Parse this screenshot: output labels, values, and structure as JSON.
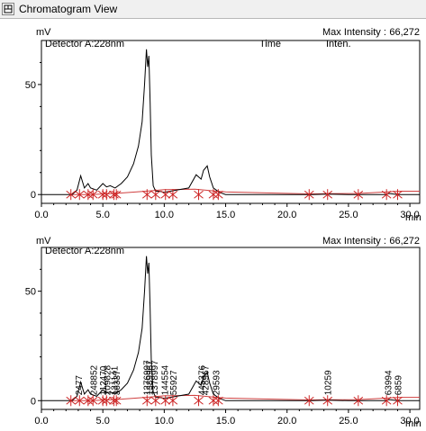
{
  "window": {
    "title": "Chromatogram View"
  },
  "icons": {
    "panel_toggle": "chromatogram-panel-icon"
  },
  "colors": {
    "trace": "#000000",
    "baseline": "#d04040",
    "marker": "#cc2222",
    "axis": "#000000"
  },
  "panels": [
    {
      "detector": "Detector A:228nm",
      "max_intensity_label": "Max Intensity :",
      "max_intensity_value": "66,272",
      "header_time": "Time",
      "header_inten": "Inten.",
      "peak_labels": []
    },
    {
      "detector": "Detector A:228nm",
      "max_intensity_label": "Max Intensity :",
      "max_intensity_value": "66,272",
      "header_time": "",
      "header_inten": "",
      "peak_labels": [
        {
          "rt": 3.0,
          "text": "2477"
        },
        {
          "rt": 4.2,
          "text": "248852"
        },
        {
          "rt": 5.0,
          "text": "112470"
        },
        {
          "rt": 5.3,
          "text": "209828"
        },
        {
          "rt": 5.9,
          "text": "131141"
        },
        {
          "rt": 6.1,
          "text": "36337"
        },
        {
          "rt": 8.55,
          "text": "1276997"
        },
        {
          "rt": 8.75,
          "text": "1389967"
        },
        {
          "rt": 9.15,
          "text": "1378997"
        },
        {
          "rt": 10.0,
          "text": "144554"
        },
        {
          "rt": 10.7,
          "text": "55927"
        },
        {
          "rt": 13.0,
          "text": "445376"
        },
        {
          "rt": 13.3,
          "text": "428967"
        },
        {
          "rt": 14.2,
          "text": "29593"
        },
        {
          "rt": 23.3,
          "text": "10259"
        },
        {
          "rt": 28.2,
          "text": "63994"
        },
        {
          "rt": 29.0,
          "text": "6859"
        }
      ]
    }
  ],
  "chart_data": [
    {
      "type": "line",
      "xlabel": "min",
      "ylabel": "mV",
      "xlim": [
        0,
        30.8
      ],
      "ylim": [
        -4,
        70
      ],
      "x_ticks": [
        0,
        5,
        10,
        15,
        20,
        25,
        30
      ],
      "x_tick_labels": [
        "0.0",
        "5.0",
        "10.0",
        "15.0",
        "20.0",
        "25.0",
        "30.0"
      ],
      "y_ticks": [
        0,
        50
      ],
      "y_tick_labels": [
        "0",
        "50"
      ],
      "series": [
        {
          "x": [
            0,
            2.5,
            2.9,
            3.2,
            3.5,
            3.8,
            4.0,
            4.5,
            5.0,
            5.3,
            5.6,
            6.0,
            6.5,
            7.0,
            7.5,
            7.9,
            8.2,
            8.4,
            8.55,
            8.65,
            8.75,
            8.85,
            8.95,
            9.1,
            9.3,
            9.6,
            10.0,
            10.5,
            11.0,
            12.0,
            12.6,
            13.0,
            13.2,
            13.5,
            13.7,
            14.0,
            14.5,
            15.0,
            20.0,
            22.0,
            23.3,
            25.0,
            26.0,
            28.0,
            28.3,
            29.0,
            30.8
          ],
          "y": [
            0,
            0,
            2,
            8.5,
            3,
            5,
            3,
            2,
            5,
            3.5,
            4,
            3,
            5,
            8,
            14,
            22,
            33,
            50,
            66,
            58,
            63,
            42,
            18,
            4,
            1.5,
            1.5,
            1,
            1.5,
            2,
            3,
            9,
            7,
            11,
            13,
            8,
            3,
            1,
            0,
            0,
            0,
            0.2,
            0,
            0,
            0,
            0.5,
            0,
            0
          ]
        }
      ],
      "baseline": {
        "x": [
          2.5,
          4,
          6,
          8.5,
          10,
          12.5,
          14.5,
          15,
          21.8,
          23.3,
          25.8,
          28.2,
          29.1,
          30.8
        ],
        "y": [
          0,
          0,
          0.5,
          1.5,
          2.2,
          2.4,
          1.4,
          1.2,
          0.3,
          0.4,
          0.5,
          1.2,
          1.5,
          1.5
        ]
      },
      "markers": [
        2.4,
        3.1,
        3.8,
        4.2,
        5.0,
        5.3,
        5.9,
        6.1,
        8.6,
        9.3,
        10.1,
        10.7,
        12.8,
        14.0,
        14.4,
        21.8,
        23.3,
        25.8,
        28.1,
        29.0
      ]
    },
    {
      "type": "line",
      "xlabel": "min",
      "ylabel": "mV",
      "xlim": [
        0,
        30.8
      ],
      "ylim": [
        -4,
        70
      ],
      "x_ticks": [
        0,
        5,
        10,
        15,
        20,
        25,
        30
      ],
      "x_tick_labels": [
        "0.0",
        "5.0",
        "10.0",
        "15.0",
        "20.0",
        "25.0",
        "30.0"
      ],
      "y_ticks": [
        0,
        50
      ],
      "y_tick_labels": [
        "0",
        "50"
      ],
      "series": [
        {
          "x": [
            0,
            2.5,
            2.9,
            3.2,
            3.5,
            3.8,
            4.0,
            4.5,
            5.0,
            5.3,
            5.6,
            6.0,
            6.5,
            7.0,
            7.5,
            7.9,
            8.2,
            8.4,
            8.55,
            8.65,
            8.75,
            8.85,
            8.95,
            9.1,
            9.3,
            9.6,
            10.0,
            10.5,
            11.0,
            12.0,
            12.6,
            13.0,
            13.2,
            13.5,
            13.7,
            14.0,
            14.5,
            15.0,
            20.0,
            22.0,
            23.3,
            25.0,
            26.0,
            28.0,
            28.3,
            29.0,
            30.8
          ],
          "y": [
            0,
            0,
            2,
            8.5,
            3,
            5,
            3,
            2,
            5,
            3.5,
            4,
            3,
            5,
            8,
            14,
            22,
            33,
            50,
            66,
            58,
            63,
            42,
            18,
            4,
            1.5,
            1.5,
            1,
            1.5,
            2,
            3,
            9,
            7,
            11,
            13,
            8,
            3,
            1,
            0,
            0,
            0,
            0.2,
            0,
            0,
            0,
            0.5,
            0,
            0
          ]
        }
      ],
      "baseline": {
        "x": [
          2.5,
          4,
          6,
          8.5,
          10,
          12.5,
          14.5,
          15,
          21.8,
          23.3,
          25.8,
          28.2,
          29.1,
          30.8
        ],
        "y": [
          0,
          0,
          0.5,
          1.5,
          2.2,
          2.4,
          1.4,
          1.2,
          0.3,
          0.4,
          0.5,
          1.2,
          1.5,
          1.5
        ]
      },
      "markers": [
        2.4,
        3.1,
        3.8,
        4.2,
        5.0,
        5.3,
        5.9,
        6.1,
        8.6,
        9.3,
        10.1,
        10.7,
        12.8,
        14.0,
        14.4,
        21.8,
        23.3,
        25.8,
        28.1,
        29.0
      ]
    }
  ]
}
